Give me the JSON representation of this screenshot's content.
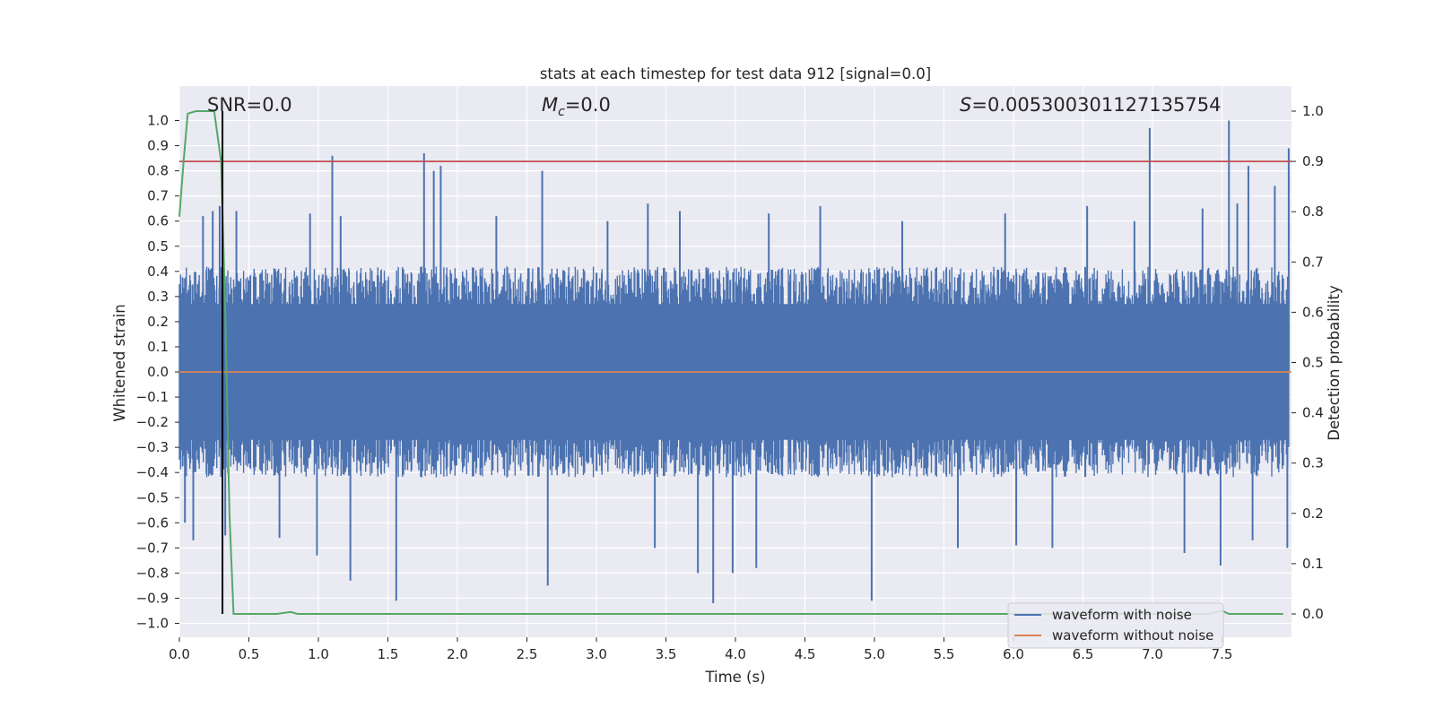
{
  "chart_data": {
    "type": "line",
    "title": "stats at each timestep for test data 912 [signal=0.0]",
    "xlabel": "Time (s)",
    "ylabel": "Whitened strain",
    "ylabel_right": "Detection probability",
    "xlim": [
      0.0,
      8.0
    ],
    "ylim": [
      -1.05,
      1.05
    ],
    "ylim_right": [
      -0.05,
      1.05
    ],
    "x_ticks": [
      "0.0",
      "0.5",
      "1.0",
      "1.5",
      "2.0",
      "2.5",
      "3.0",
      "3.5",
      "4.0",
      "4.5",
      "5.0",
      "5.5",
      "6.0",
      "6.5",
      "7.0",
      "7.5"
    ],
    "y_ticks": [
      "1.0",
      "0.9",
      "0.8",
      "0.7",
      "0.6",
      "0.5",
      "0.4",
      "0.3",
      "0.2",
      "0.1",
      "0.0",
      "−0.1",
      "−0.2",
      "−0.3",
      "−0.4",
      "−0.5",
      "−0.6",
      "−0.7",
      "−0.8",
      "−0.9",
      "−1.0"
    ],
    "y_ticks_right": [
      "1.0",
      "0.9",
      "0.8",
      "0.7",
      "0.6",
      "0.5",
      "0.4",
      "0.3",
      "0.2",
      "0.1",
      "0.0"
    ],
    "annotations": {
      "snr": "SNR=0.0",
      "mc_symbol": "M",
      "mc_sub": "c",
      "mc_value": "=0.0",
      "s_symbol": "S",
      "s_value": "=0.005300301127135754"
    },
    "threshold_right": 0.9,
    "marker_time": 0.31,
    "series": [
      {
        "name": "waveform with noise",
        "color": "#4c72b0",
        "description": "dense whitened noise, core within about ±0.42, spikes up to 1.0",
        "spikes": [
          [
            0.04,
            -0.6
          ],
          [
            0.1,
            -0.67
          ],
          [
            0.17,
            0.62
          ],
          [
            0.24,
            0.64
          ],
          [
            0.29,
            0.66
          ],
          [
            0.33,
            -0.65
          ],
          [
            0.41,
            0.64
          ],
          [
            0.72,
            -0.66
          ],
          [
            0.94,
            0.63
          ],
          [
            0.99,
            -0.73
          ],
          [
            1.1,
            0.86
          ],
          [
            1.16,
            0.62
          ],
          [
            1.23,
            -0.83
          ],
          [
            1.56,
            -0.91
          ],
          [
            1.76,
            0.87
          ],
          [
            1.83,
            0.8
          ],
          [
            1.88,
            0.82
          ],
          [
            2.28,
            0.62
          ],
          [
            2.61,
            0.8
          ],
          [
            2.65,
            -0.85
          ],
          [
            3.08,
            0.6
          ],
          [
            3.37,
            0.67
          ],
          [
            3.42,
            -0.7
          ],
          [
            3.6,
            0.64
          ],
          [
            3.73,
            -0.8
          ],
          [
            3.84,
            -0.92
          ],
          [
            3.98,
            -0.8
          ],
          [
            4.15,
            -0.78
          ],
          [
            4.24,
            0.63
          ],
          [
            4.61,
            0.66
          ],
          [
            4.98,
            -0.91
          ],
          [
            5.2,
            0.6
          ],
          [
            5.6,
            -0.7
          ],
          [
            5.94,
            0.63
          ],
          [
            6.02,
            -0.69
          ],
          [
            6.28,
            -0.7
          ],
          [
            6.53,
            0.66
          ],
          [
            6.87,
            0.6
          ],
          [
            6.98,
            0.97
          ],
          [
            7.23,
            -0.72
          ],
          [
            7.36,
            0.65
          ],
          [
            7.49,
            -0.77
          ],
          [
            7.55,
            1.0
          ],
          [
            7.61,
            0.67
          ],
          [
            7.69,
            0.82
          ],
          [
            7.72,
            -0.67
          ],
          [
            7.88,
            0.74
          ],
          [
            7.97,
            -0.7
          ],
          [
            7.98,
            0.89
          ]
        ]
      },
      {
        "name": "waveform without noise",
        "color": "#dd8452",
        "x": [
          0.0,
          8.0
        ],
        "y": [
          0.0,
          0.0
        ]
      },
      {
        "name": "detection probability",
        "color": "#55a868",
        "axis": "right",
        "x": [
          0.0,
          0.03,
          0.06,
          0.12,
          0.19,
          0.25,
          0.3,
          0.33,
          0.36,
          0.39,
          0.5,
          0.7,
          0.8,
          0.85,
          0.9,
          1.2,
          2.0,
          3.0,
          4.0,
          5.0,
          6.0,
          7.0,
          7.25,
          7.4,
          7.5,
          7.55,
          7.6,
          7.7,
          7.94
        ],
        "y": [
          0.79,
          0.9,
          0.995,
          1.0,
          1.0,
          1.0,
          0.9,
          0.6,
          0.2,
          0.0,
          0.0,
          0.0,
          0.004,
          0.0,
          0.0,
          0.0,
          0.0,
          0.0,
          0.0,
          0.0,
          0.0,
          0.0,
          0.0,
          0.0,
          0.006,
          0.0,
          0.0,
          0.0,
          0.0
        ]
      }
    ],
    "legend": [
      "waveform with noise",
      "waveform without noise"
    ],
    "legend_position": "lower-right"
  }
}
